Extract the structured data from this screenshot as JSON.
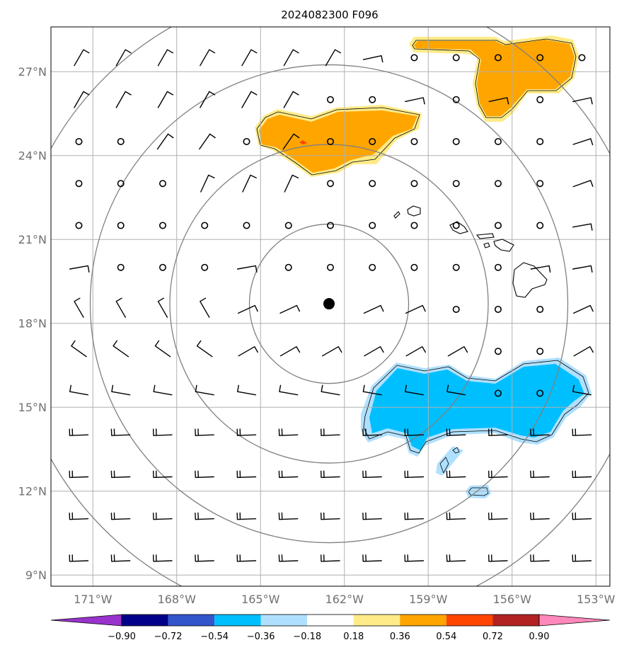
{
  "map": {
    "title": "2024082300 F096",
    "lon_labels": [
      "171°W",
      "168°W",
      "165°W",
      "162°W",
      "159°W",
      "156°W",
      "153°W"
    ],
    "lat_labels": [
      "27°N",
      "24°N",
      "21°N",
      "18°N",
      "15°N",
      "12°N",
      "9°N"
    ],
    "extent": {
      "lon_min": -172.5,
      "lon_max": -152.5,
      "lat_min": 8.6,
      "lat_max": 28.6
    },
    "storm_center": {
      "lon": -162.55,
      "lat": 18.7
    },
    "range_ring_count": 4,
    "positive_anomaly_regions": [
      {
        "name": "northeast-positive-anomaly",
        "level": 0.45
      },
      {
        "name": "central-positive-anomaly",
        "level": 0.45
      }
    ],
    "negative_anomaly_regions": [
      {
        "name": "southeast-negative-anomaly",
        "level": -0.45
      }
    ]
  },
  "colorbar": {
    "tick_labels": [
      "−0.90",
      "−0.72",
      "−0.54",
      "−0.36",
      "−0.18",
      "0.18",
      "0.36",
      "0.54",
      "0.72",
      "0.90"
    ],
    "colors": [
      "#9933cc",
      "#000088",
      "#3355cc",
      "#00bfff",
      "#b0e0ff",
      "#ffffff",
      "#ffeb88",
      "#ffa500",
      "#ff4500",
      "#b22222",
      "#ff88bb"
    ]
  }
}
